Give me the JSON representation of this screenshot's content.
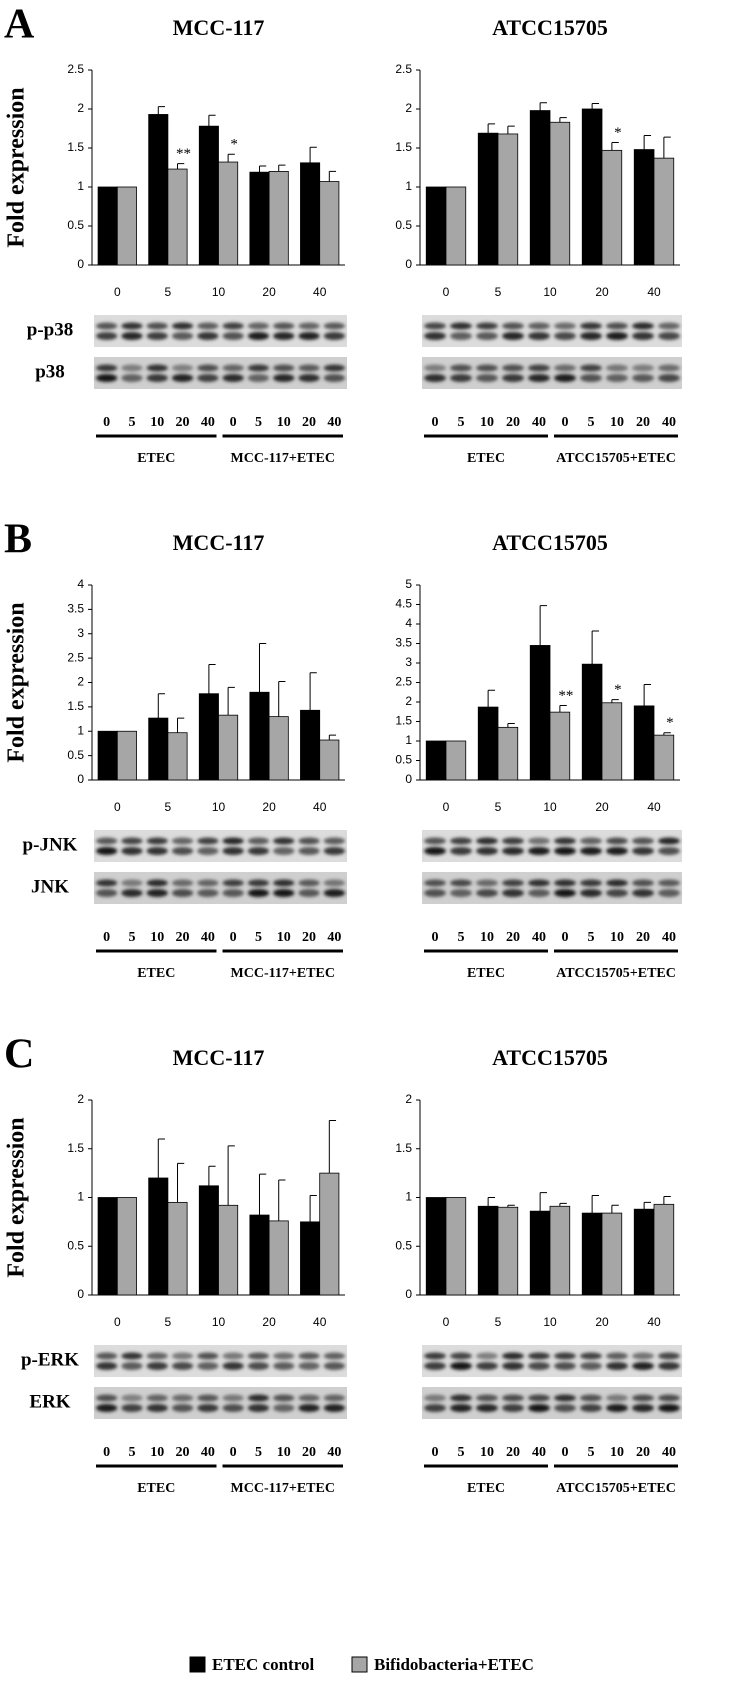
{
  "panels": [
    "A",
    "B",
    "C"
  ],
  "legend": [
    {
      "name": "ETEC control",
      "color": "#000000"
    },
    {
      "name": "Bifidobacteria+ETEC",
      "color": "#a6a6a6"
    }
  ],
  "chart_data": [
    {
      "type": "bar",
      "title": "MCC-117",
      "ylabel": "Fold expression",
      "categories": [
        "0",
        "5",
        "10",
        "20",
        "40"
      ],
      "series": [
        {
          "color": "#000000",
          "values": [
            1,
            1.93,
            1.78,
            1.19,
            1.31
          ],
          "errors": [
            0,
            0.1,
            0.14,
            0.08,
            0.2
          ]
        },
        {
          "color": "#a6a6a6",
          "values": [
            1,
            1.23,
            1.32,
            1.2,
            1.07
          ],
          "errors": [
            0,
            0.07,
            0.1,
            0.08,
            0.13
          ],
          "significance": [
            null,
            "**",
            "*",
            null,
            null
          ]
        }
      ],
      "ylim": [
        0,
        2.5
      ],
      "yticks": [
        0,
        0.5,
        1,
        1.5,
        2,
        2.5
      ],
      "blot_rows": [
        "p-p38",
        "p38"
      ],
      "lanes": [
        "0",
        "5",
        "10",
        "20",
        "40",
        "0",
        "5",
        "10",
        "20",
        "40"
      ],
      "groups": [
        "ETEC",
        "MCC-117+ETEC"
      ]
    },
    {
      "type": "bar",
      "title": "ATCC15705",
      "categories": [
        "0",
        "5",
        "10",
        "20",
        "40"
      ],
      "series": [
        {
          "color": "#000000",
          "values": [
            1,
            1.69,
            1.98,
            2.0,
            1.48
          ],
          "errors": [
            0,
            0.12,
            0.1,
            0.07,
            0.18
          ]
        },
        {
          "color": "#a6a6a6",
          "values": [
            1,
            1.68,
            1.83,
            1.47,
            1.37
          ],
          "errors": [
            0,
            0.1,
            0.06,
            0.1,
            0.27
          ],
          "significance": [
            null,
            null,
            null,
            "*",
            null
          ]
        }
      ],
      "ylim": [
        0,
        2.5
      ],
      "yticks": [
        0,
        0.5,
        1,
        1.5,
        2,
        2.5
      ],
      "lanes": [
        "0",
        "5",
        "10",
        "20",
        "40",
        "0",
        "5",
        "10",
        "20",
        "40"
      ],
      "groups": [
        "ETEC",
        "ATCC15705+ETEC"
      ]
    },
    {
      "type": "bar",
      "title": "MCC-117",
      "ylabel": "Fold expression",
      "categories": [
        "0",
        "5",
        "10",
        "20",
        "40"
      ],
      "series": [
        {
          "color": "#000000",
          "values": [
            1,
            1.27,
            1.77,
            1.8,
            1.43
          ],
          "errors": [
            0,
            0.5,
            0.6,
            1.0,
            0.77
          ]
        },
        {
          "color": "#a6a6a6",
          "values": [
            1,
            0.97,
            1.33,
            1.3,
            0.82
          ],
          "errors": [
            0,
            0.3,
            0.57,
            0.72,
            0.1
          ]
        }
      ],
      "ylim": [
        0,
        4
      ],
      "yticks": [
        0,
        0.5,
        1,
        1.5,
        2,
        2.5,
        3,
        3.5,
        4
      ],
      "blot_rows": [
        "p-JNK",
        "JNK"
      ],
      "lanes": [
        "0",
        "5",
        "10",
        "20",
        "40",
        "0",
        "5",
        "10",
        "20",
        "40"
      ],
      "groups": [
        "ETEC",
        "MCC-117+ETEC"
      ]
    },
    {
      "type": "bar",
      "title": "ATCC15705",
      "categories": [
        "0",
        "5",
        "10",
        "20",
        "40"
      ],
      "series": [
        {
          "color": "#000000",
          "values": [
            1,
            1.87,
            3.45,
            2.97,
            1.9
          ],
          "errors": [
            0,
            0.43,
            1.02,
            0.85,
            0.55
          ]
        },
        {
          "color": "#a6a6a6",
          "values": [
            1,
            1.35,
            1.74,
            1.98,
            1.15
          ],
          "errors": [
            0,
            0.1,
            0.17,
            0.08,
            0.06
          ],
          "significance": [
            null,
            null,
            "**",
            "*",
            "*"
          ]
        }
      ],
      "ylim": [
        0,
        5
      ],
      "yticks": [
        0,
        0.5,
        1,
        1.5,
        2,
        2.5,
        3,
        3.5,
        4,
        4.5,
        5
      ],
      "lanes": [
        "0",
        "5",
        "10",
        "20",
        "40",
        "0",
        "5",
        "10",
        "20",
        "40"
      ],
      "groups": [
        "ETEC",
        "ATCC15705+ETEC"
      ]
    },
    {
      "type": "bar",
      "title": "MCC-117",
      "ylabel": "Fold expression",
      "categories": [
        "0",
        "5",
        "10",
        "20",
        "40"
      ],
      "series": [
        {
          "color": "#000000",
          "values": [
            1,
            1.2,
            1.12,
            0.82,
            0.75
          ],
          "errors": [
            0,
            0.4,
            0.2,
            0.42,
            0.27
          ]
        },
        {
          "color": "#a6a6a6",
          "values": [
            1,
            0.95,
            0.92,
            0.76,
            1.25
          ],
          "errors": [
            0,
            0.4,
            0.61,
            0.42,
            0.54
          ]
        }
      ],
      "ylim": [
        0,
        2
      ],
      "yticks": [
        0,
        0.5,
        1,
        1.5,
        2
      ],
      "blot_rows": [
        "p-ERK",
        "ERK"
      ],
      "lanes": [
        "0",
        "5",
        "10",
        "20",
        "40",
        "0",
        "5",
        "10",
        "20",
        "40"
      ],
      "groups": [
        "ETEC",
        "MCC-117+ETEC"
      ]
    },
    {
      "type": "bar",
      "title": "ATCC15705",
      "categories": [
        "0",
        "5",
        "10",
        "20",
        "40"
      ],
      "series": [
        {
          "color": "#000000",
          "values": [
            1,
            0.91,
            0.86,
            0.84,
            0.88
          ],
          "errors": [
            0,
            0.09,
            0.19,
            0.18,
            0.07
          ]
        },
        {
          "color": "#a6a6a6",
          "values": [
            1,
            0.9,
            0.91,
            0.84,
            0.93
          ],
          "errors": [
            0,
            0.02,
            0.03,
            0.08,
            0.08
          ]
        }
      ],
      "ylim": [
        0,
        2
      ],
      "yticks": [
        0,
        0.5,
        1,
        1.5,
        2
      ],
      "lanes": [
        "0",
        "5",
        "10",
        "20",
        "40",
        "0",
        "5",
        "10",
        "20",
        "40"
      ],
      "groups": [
        "ETEC",
        "ATCC15705+ETEC"
      ]
    }
  ]
}
